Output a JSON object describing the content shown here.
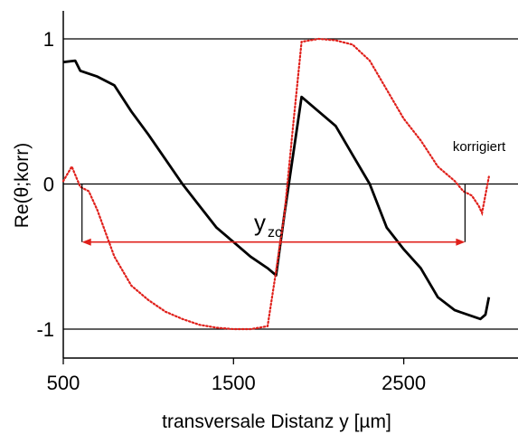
{
  "chart_data": {
    "type": "line",
    "xlabel": "transversale Distanz y [µm]",
    "ylabel": "Re(θ;korr)",
    "xlim": [
      500,
      3200
    ],
    "ylim": [
      -1.2,
      1.2
    ],
    "x_ticks": [
      "500",
      "1500",
      "2500"
    ],
    "x_tick_values": [
      500,
      1500,
      2500
    ],
    "y_ticks": [
      "1",
      "0",
      "-1"
    ],
    "y_tick_values": [
      1,
      0,
      -1
    ],
    "reference_lines": [
      1,
      0,
      -1
    ],
    "colors": {
      "raw": "#000000",
      "corrected": "#e0201b"
    },
    "series": [
      {
        "id": "raw",
        "style": "solid",
        "x": [
          500,
          570,
          600,
          700,
          800,
          900,
          1000,
          1100,
          1200,
          1300,
          1400,
          1500,
          1600,
          1700,
          1750,
          1800,
          1850,
          1900,
          2000,
          2100,
          2200,
          2300,
          2400,
          2500,
          2600,
          2700,
          2800,
          2900,
          2950,
          2980,
          3000
        ],
        "y": [
          0.84,
          0.85,
          0.78,
          0.74,
          0.68,
          0.5,
          0.34,
          0.17,
          0.0,
          -0.15,
          -0.3,
          -0.4,
          -0.5,
          -0.58,
          -0.63,
          -0.2,
          0.2,
          0.6,
          0.5,
          0.4,
          0.2,
          0.0,
          -0.3,
          -0.45,
          -0.58,
          -0.78,
          -0.87,
          -0.91,
          -0.93,
          -0.9,
          -0.78
        ]
      },
      {
        "id": "corrected",
        "name": "korrigiert",
        "style": "dotted",
        "x": [
          500,
          550,
          600,
          650,
          700,
          800,
          900,
          1000,
          1100,
          1200,
          1300,
          1400,
          1500,
          1600,
          1700,
          1750,
          1800,
          1850,
          1900,
          2000,
          2100,
          2200,
          2300,
          2400,
          2500,
          2600,
          2700,
          2800,
          2850,
          2900,
          2940,
          2960,
          3000
        ],
        "y": [
          0.02,
          0.12,
          -0.02,
          -0.05,
          -0.18,
          -0.5,
          -0.7,
          -0.8,
          -0.88,
          -0.93,
          -0.97,
          -0.99,
          -1.0,
          -1.0,
          -0.98,
          -0.6,
          -0.2,
          0.4,
          0.98,
          1.0,
          0.99,
          0.96,
          0.85,
          0.65,
          0.45,
          0.3,
          0.12,
          0.02,
          -0.05,
          -0.08,
          -0.15,
          -0.2,
          0.05
        ]
      }
    ],
    "annotations": {
      "yzc": {
        "label": "y",
        "subscript": "zc",
        "x_start": 610,
        "x_end": 2860,
        "y": -0.4
      }
    }
  }
}
